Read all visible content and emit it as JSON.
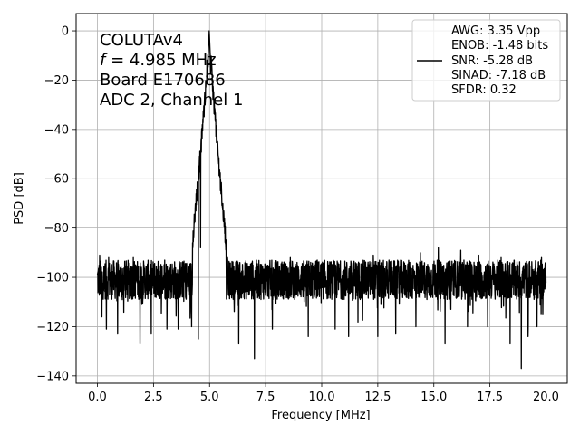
{
  "chart_data": {
    "type": "line",
    "xlabel": "Frequency [MHz]",
    "ylabel": "PSD [dB]",
    "xlim": [
      -0.95,
      20.95
    ],
    "ylim": [
      -143,
      7
    ],
    "x_ticks": [
      0.0,
      2.5,
      5.0,
      7.5,
      10.0,
      12.5,
      15.0,
      17.5,
      20.0
    ],
    "x_tick_labels": [
      "0.0",
      "2.5",
      "5.0",
      "7.5",
      "10.0",
      "12.5",
      "15.0",
      "17.5",
      "20.0"
    ],
    "y_ticks": [
      0,
      -20,
      -40,
      -60,
      -80,
      -100,
      -120,
      -140
    ],
    "y_tick_labels": [
      "0",
      "−20",
      "−40",
      "−60",
      "−80",
      "−100",
      "−120",
      "−140"
    ],
    "grid": true,
    "annotation_lines": [
      "COLUTAv4",
      "f = 4.985 MHz",
      "Board E170686",
      "ADC 2, Channel 1"
    ],
    "annotation_f_symbol": "f",
    "annotation_f_rest": " = 4.985 MHz",
    "legend": {
      "placement": "upper right",
      "lines": [
        "AWG: 3.35 Vpp",
        "ENOB: -1.48 bits",
        "SNR: -5.28 dB",
        "SINAD: -7.18 dB",
        "SFDR: 0.32"
      ]
    },
    "series": [
      {
        "color": "#000000",
        "x_range": [
          0.0,
          20.0
        ],
        "peak_x": 4.985,
        "peak_y": 0,
        "noise_floor": -101,
        "noise_min": -137,
        "noise_max": -88,
        "dip_points": [
          {
            "x": 0.2,
            "y": -116
          },
          {
            "x": 0.4,
            "y": -121
          },
          {
            "x": 0.9,
            "y": -123
          },
          {
            "x": 1.9,
            "y": -127
          },
          {
            "x": 2.4,
            "y": -123
          },
          {
            "x": 3.1,
            "y": -121
          },
          {
            "x": 3.6,
            "y": -121
          },
          {
            "x": 4.2,
            "y": -120
          },
          {
            "x": 4.5,
            "y": -125
          },
          {
            "x": 6.3,
            "y": -127
          },
          {
            "x": 7.0,
            "y": -133
          },
          {
            "x": 7.8,
            "y": -121
          },
          {
            "x": 9.4,
            "y": -124
          },
          {
            "x": 10.6,
            "y": -121
          },
          {
            "x": 11.2,
            "y": -124
          },
          {
            "x": 12.5,
            "y": -124
          },
          {
            "x": 13.3,
            "y": -123
          },
          {
            "x": 14.2,
            "y": -120
          },
          {
            "x": 14.4,
            "y": -127
          },
          {
            "x": 15.5,
            "y": -127
          },
          {
            "x": 16.5,
            "y": -120
          },
          {
            "x": 17.4,
            "y": -120
          },
          {
            "x": 18.4,
            "y": -127
          },
          {
            "x": 18.9,
            "y": -137
          },
          {
            "x": 19.2,
            "y": -124
          },
          {
            "x": 19.6,
            "y": -120
          }
        ],
        "high_points": [
          {
            "x": 0.1,
            "y": -91
          },
          {
            "x": 0.5,
            "y": -92
          },
          {
            "x": 1.6,
            "y": -92
          },
          {
            "x": 3.0,
            "y": -93
          },
          {
            "x": 4.6,
            "y": -88
          },
          {
            "x": 5.8,
            "y": -92
          },
          {
            "x": 8.6,
            "y": -92
          },
          {
            "x": 9.8,
            "y": -93
          },
          {
            "x": 12.3,
            "y": -91
          },
          {
            "x": 13.0,
            "y": -93
          },
          {
            "x": 14.4,
            "y": -90
          },
          {
            "x": 15.2,
            "y": -88
          },
          {
            "x": 16.2,
            "y": -89
          },
          {
            "x": 17.0,
            "y": -91
          },
          {
            "x": 18.0,
            "y": -92
          },
          {
            "x": 19.8,
            "y": -92
          }
        ]
      }
    ]
  }
}
